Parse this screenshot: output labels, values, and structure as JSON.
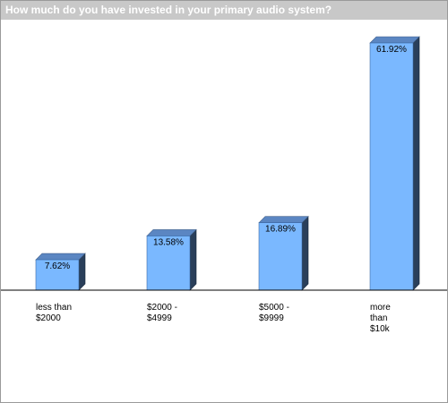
{
  "chart_data": {
    "type": "bar",
    "title": "How much do you have invested in your primary audio system?",
    "categories": [
      "less than\n$2000",
      "$2000 -\n$4999",
      "$5000 -\n$9999",
      "more\nthan\n$10k"
    ],
    "values": [
      7.62,
      13.58,
      16.89,
      61.92
    ],
    "value_labels": [
      "7.62%",
      "13.58%",
      "16.89%",
      "61.92%"
    ],
    "ylim": [
      0,
      61.92
    ],
    "xlabel": "",
    "ylabel": "",
    "grid": false,
    "legend": "none",
    "style": "3d-bars"
  },
  "colors": {
    "bar_front": "#7ab8ff",
    "bar_top": "#5b86c2",
    "bar_side": "#2a3f5a",
    "title_bar": "#c8c8c8",
    "title_text": "#ffffff"
  }
}
